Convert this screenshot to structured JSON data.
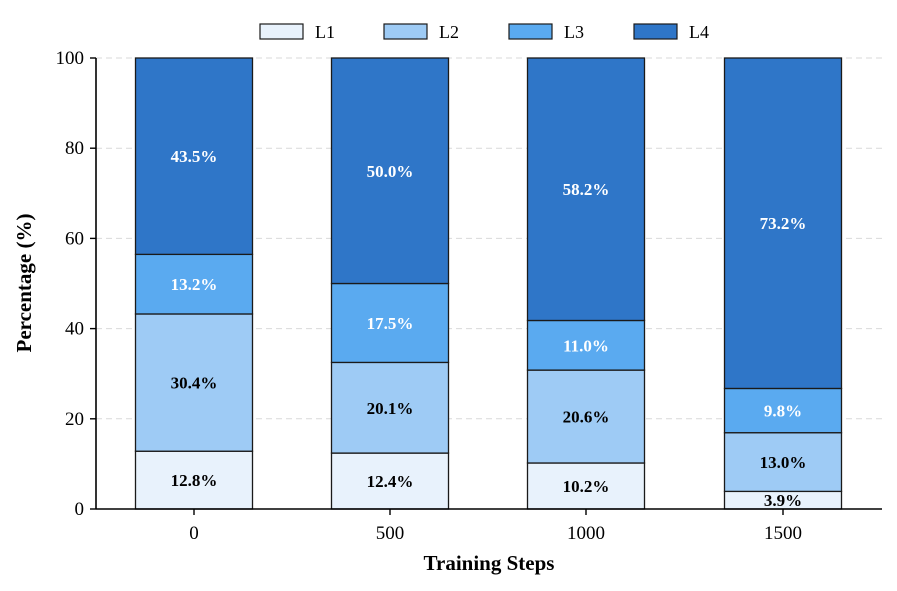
{
  "chart_data": {
    "type": "bar",
    "stacked": true,
    "categories": [
      "0",
      "500",
      "1000",
      "1500"
    ],
    "series": [
      {
        "name": "L1",
        "values": [
          12.8,
          12.4,
          10.2,
          3.9
        ],
        "color": "#e8f2fc",
        "label_color": "#000000"
      },
      {
        "name": "L2",
        "values": [
          30.4,
          20.1,
          20.6,
          13.0
        ],
        "color": "#9ecbf5",
        "label_color": "#000000"
      },
      {
        "name": "L3",
        "values": [
          13.2,
          17.5,
          11.0,
          9.8
        ],
        "color": "#5aaaf0",
        "label_color": "#ffffff"
      },
      {
        "name": "L4",
        "values": [
          43.5,
          50.0,
          58.2,
          73.2
        ],
        "color": "#2f76c8",
        "label_color": "#ffffff"
      }
    ],
    "data_labels": [
      [
        "12.8%",
        "12.4%",
        "10.2%",
        "3.9%"
      ],
      [
        "30.4%",
        "20.1%",
        "20.6%",
        "13.0%"
      ],
      [
        "13.2%",
        "17.5%",
        "11.0%",
        "9.8%"
      ],
      [
        "43.5%",
        "50.0%",
        "58.2%",
        "73.2%"
      ]
    ],
    "xlabel": "Training Steps",
    "ylabel": "Percentage (%)",
    "ylim": [
      0,
      100
    ],
    "yticks": [
      "0",
      "20",
      "40",
      "60",
      "80",
      "100"
    ],
    "grid": "y-dashed",
    "legend": "top-center"
  }
}
